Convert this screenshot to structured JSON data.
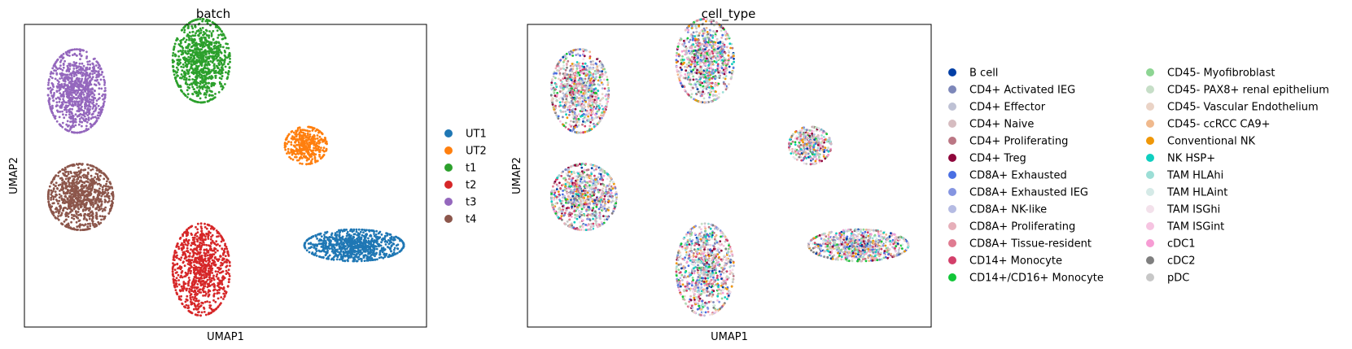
{
  "chart_data": [
    {
      "type": "scatter",
      "title": "batch",
      "xlabel": "UMAP1",
      "ylabel": "UMAP2",
      "grid": false,
      "ticks": false,
      "legend_placement": "right",
      "legend_columns": 1,
      "legend": [
        {
          "label": "UT1",
          "color": "#1f77b4"
        },
        {
          "label": "UT2",
          "color": "#ff7f0e"
        },
        {
          "label": "t1",
          "color": "#2ca02c"
        },
        {
          "label": "t2",
          "color": "#d62728"
        },
        {
          "label": "t3",
          "color": "#9467bd"
        },
        {
          "label": "t4",
          "color": "#8c564b"
        }
      ],
      "clusters": [
        {
          "batch": "t3",
          "cx": 0.13,
          "cy": 0.78,
          "sx": 0.075,
          "sy": 0.145,
          "n": 900
        },
        {
          "batch": "t1",
          "cx": 0.44,
          "cy": 0.88,
          "sx": 0.075,
          "sy": 0.145,
          "n": 900
        },
        {
          "batch": "UT2",
          "cx": 0.7,
          "cy": 0.6,
          "sx": 0.055,
          "sy": 0.065,
          "n": 380
        },
        {
          "batch": "t4",
          "cx": 0.14,
          "cy": 0.43,
          "sx": 0.085,
          "sy": 0.115,
          "n": 900
        },
        {
          "batch": "UT1",
          "cx": 0.82,
          "cy": 0.27,
          "sx": 0.13,
          "sy": 0.055,
          "n": 850
        },
        {
          "batch": "t2",
          "cx": 0.44,
          "cy": 0.19,
          "sx": 0.075,
          "sy": 0.16,
          "n": 900
        }
      ]
    },
    {
      "type": "scatter",
      "title": "cell_type",
      "xlabel": "UMAP1",
      "ylabel": "UMAP2",
      "grid": false,
      "ticks": false,
      "legend_placement": "right",
      "legend_columns": 2,
      "legend": [
        {
          "label": "B cell",
          "color": "#023fa5"
        },
        {
          "label": "CD4+ Activated IEG",
          "color": "#7d87b9"
        },
        {
          "label": "CD4+ Effector",
          "color": "#bec1d4"
        },
        {
          "label": "CD4+ Naive",
          "color": "#d6bcc0"
        },
        {
          "label": "CD4+ Proliferating",
          "color": "#bb7784"
        },
        {
          "label": "CD4+ Treg",
          "color": "#8e063b"
        },
        {
          "label": "CD8A+ Exhausted",
          "color": "#4a6fe3"
        },
        {
          "label": "CD8A+ Exhausted IEG",
          "color": "#8595e1"
        },
        {
          "label": "CD8A+ NK-like",
          "color": "#b5bbe3"
        },
        {
          "label": "CD8A+ Proliferating",
          "color": "#e6afb9"
        },
        {
          "label": "CD8A+ Tissue-resident",
          "color": "#e07b91"
        },
        {
          "label": "CD14+ Monocyte",
          "color": "#d33f6a"
        },
        {
          "label": "CD14+/CD16+ Monocyte",
          "color": "#11c638"
        },
        {
          "label": "CD45- Myofibroblast",
          "color": "#8dd593"
        },
        {
          "label": "CD45- PAX8+ renal epithelium",
          "color": "#c6dec7"
        },
        {
          "label": "CD45- Vascular Endothelium",
          "color": "#ead3c6"
        },
        {
          "label": "CD45- ccRCC CA9+",
          "color": "#f0b98d"
        },
        {
          "label": "Conventional NK",
          "color": "#ef9708"
        },
        {
          "label": "NK HSP+",
          "color": "#0fcfc0"
        },
        {
          "label": "TAM HLAhi",
          "color": "#9cded6"
        },
        {
          "label": "TAM HLAint",
          "color": "#d5eae7"
        },
        {
          "label": "TAM ISGhi",
          "color": "#f3e1eb"
        },
        {
          "label": "TAM ISGint",
          "color": "#f6c4e1"
        },
        {
          "label": "cDC1",
          "color": "#f79cd4"
        },
        {
          "label": "cDC2",
          "color": "#7f7f7f"
        },
        {
          "label": "pDC",
          "color": "#c7c7c7"
        }
      ]
    }
  ]
}
